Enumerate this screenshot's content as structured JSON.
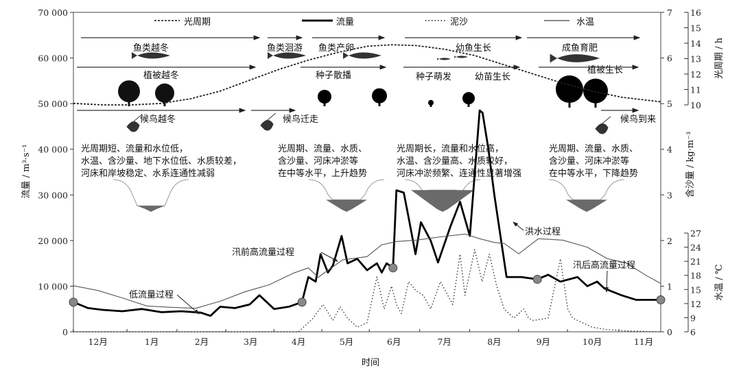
{
  "chart_data": {
    "type": "line",
    "xlabel": "时间",
    "x_ticks": [
      "12月",
      "1月",
      "2月",
      "3月",
      "4月",
      "5月",
      "6月",
      "7月",
      "8月",
      "9月",
      "10月",
      "11月"
    ],
    "x_tick_pos_months": [
      0.5,
      1.6,
      2.62,
      3.62,
      4.6,
      5.58,
      6.55,
      7.58,
      8.6,
      9.6,
      10.6,
      11.65
    ],
    "x_range_months": [
      0,
      12
    ],
    "left_axis": {
      "label": "流量 / m³·s⁻¹",
      "ylim": [
        0,
        70000
      ],
      "ticks": [
        "0",
        "10 000",
        "20 000",
        "30 000",
        "40 000",
        "50 000",
        "60 000",
        "70 000"
      ]
    },
    "sediment_axis": {
      "label": "含沙量 / kg·m⁻³",
      "ylim": [
        0,
        7
      ],
      "ticks": [
        "0",
        "1",
        "2",
        "3",
        "4",
        "5",
        "6",
        "7"
      ]
    },
    "photoperiod_axis": {
      "label": "光周期 / h",
      "ylim": [
        10,
        16
      ],
      "ticks": [
        "10",
        "11",
        "12",
        "13",
        "14",
        "15",
        "16"
      ]
    },
    "temp_axis": {
      "label": "水温 / ℃",
      "ylim": [
        6,
        27
      ],
      "ticks": [
        "6",
        "9",
        "12",
        "15",
        "18",
        "21",
        "24",
        "27"
      ]
    },
    "legend": [
      {
        "name": "光周期",
        "style": "dotted"
      },
      {
        "name": "流量",
        "style": "thick"
      },
      {
        "name": "泥沙",
        "style": "dotted"
      },
      {
        "name": "水温",
        "style": "thin"
      }
    ],
    "series": [
      {
        "name": "流量",
        "axis": "left",
        "t": [
          0,
          0.3,
          0.6,
          1.0,
          1.4,
          1.8,
          2.2,
          2.6,
          2.8,
          3.0,
          3.3,
          3.6,
          3.8,
          4.1,
          4.4,
          4.67,
          4.8,
          4.95,
          5.05,
          5.2,
          5.3,
          5.48,
          5.6,
          5.8,
          6.0,
          6.2,
          6.3,
          6.4,
          6.53,
          6.6,
          6.75,
          6.85,
          6.99,
          7.1,
          7.3,
          7.45,
          7.7,
          7.9,
          8.1,
          8.3,
          8.36,
          8.48,
          8.6,
          8.85,
          9.15,
          9.48,
          9.7,
          9.95,
          10.3,
          10.5,
          10.7,
          10.85,
          11.2,
          11.5,
          12.0
        ],
        "values": [
          6500,
          5200,
          4800,
          4500,
          5000,
          4300,
          4500,
          4200,
          3500,
          5500,
          5200,
          6000,
          8000,
          5000,
          5500,
          6500,
          12000,
          11000,
          17000,
          13000,
          14500,
          21000,
          15000,
          16000,
          13500,
          15000,
          13000,
          15000,
          14000,
          31000,
          30500,
          25000,
          17000,
          24000,
          20000,
          15200,
          23000,
          28500,
          21000,
          48500,
          48000,
          40000,
          30000,
          12000,
          12000,
          11500,
          12500,
          11000,
          12000,
          10000,
          11000,
          9500,
          8000,
          7000,
          7000
        ]
      },
      {
        "name": "水温",
        "axis": "temp",
        "t": [
          0,
          0.5,
          1.0,
          1.5,
          2.0,
          2.5,
          3.0,
          3.5,
          4.0,
          4.5,
          4.8,
          5.0,
          5.5,
          6.0,
          6.3,
          6.6,
          7.0,
          7.5,
          8.0,
          8.3,
          8.6,
          8.8,
          9.1,
          9.5,
          10.0,
          10.5,
          10.9,
          11.3,
          11.7,
          12.0
        ],
        "values": [
          15.8,
          14.8,
          13.2,
          11.5,
          11.2,
          11.0,
          12.5,
          14.5,
          16.0,
          18.5,
          19.6,
          17.6,
          21.3,
          22.0,
          24.5,
          25.2,
          25.5,
          26.2,
          26.8,
          25.8,
          25.0,
          24.8,
          22.6,
          25.8,
          25.5,
          24.0,
          21.6,
          20.6,
          18.0,
          16.3
        ]
      },
      {
        "name": "泥沙",
        "axis": "sediment",
        "t": [
          0,
          4.6,
          4.9,
          5.1,
          5.3,
          5.45,
          5.6,
          5.8,
          6.0,
          6.2,
          6.35,
          6.5,
          6.6,
          6.7,
          6.85,
          7.0,
          7.15,
          7.3,
          7.5,
          7.6,
          7.75,
          7.9,
          8.0,
          8.2,
          8.35,
          8.5,
          8.65,
          8.8,
          9.0,
          9.2,
          9.3,
          9.4,
          9.7,
          9.95,
          10.1,
          10.2,
          10.4,
          10.6,
          10.9,
          11.3,
          12.0
        ],
        "values": [
          0,
          0,
          0.3,
          0.6,
          0.25,
          0.55,
          0.3,
          0.1,
          0.2,
          1.2,
          0.5,
          1.0,
          0.6,
          0.4,
          1.1,
          0.9,
          0.8,
          0.5,
          1.1,
          0.9,
          0.6,
          1.7,
          0.8,
          1.8,
          1.1,
          1.7,
          1.0,
          0.5,
          0.3,
          0.5,
          0.3,
          0.25,
          0.3,
          1.6,
          0.5,
          0.3,
          0.2,
          0.1,
          0.05,
          0.02,
          0
        ]
      },
      {
        "name": "光周期",
        "axis": "photoperiod",
        "t": [
          0,
          0.6,
          1.2,
          1.8,
          2.4,
          3.0,
          3.6,
          4.2,
          4.8,
          5.4,
          6.0,
          6.5,
          7.0,
          7.6,
          8.2,
          8.8,
          9.4,
          10.0,
          10.6,
          11.2,
          12.0
        ],
        "values": [
          10.1,
          10.0,
          10.0,
          10.1,
          10.4,
          10.9,
          11.6,
          12.3,
          12.9,
          13.4,
          13.8,
          13.9,
          13.85,
          13.6,
          13.2,
          12.6,
          12.0,
          11.4,
          10.9,
          10.5,
          10.2
        ]
      }
    ],
    "key_points": [
      {
        "t": 0,
        "value": 6500
      },
      {
        "t": 4.67,
        "value": 6500
      },
      {
        "t": 6.53,
        "value": 14000
      },
      {
        "t": 9.48,
        "value": 11500
      },
      {
        "t": 12.0,
        "value": 7000
      }
    ],
    "annotations": [
      "洪水过程",
      "汛前高流量过程",
      "低流量过程",
      "汛后高流量过程"
    ]
  },
  "phenology": {
    "fish": [
      "鱼类越冬",
      "鱼类洄游",
      "鱼类产卵",
      "幼鱼生长",
      "成鱼育肥"
    ],
    "plants": [
      "植被越冬",
      "种子散播",
      "种子萌发",
      "幼苗生长",
      "植被生长"
    ],
    "birds": [
      "候鸟越冬",
      "候鸟迁走",
      "候鸟到来"
    ]
  },
  "descriptions": [
    [
      "光周期短、流量和水位低，",
      "水温、含沙量、地下水位低、水质较差，",
      "河床和岸坡稳定、水系连通性减弱"
    ],
    [
      "光周期、流量、水质、",
      "含沙量、河床冲淤等",
      "在中等水平，上升趋势"
    ],
    [
      "光周期长，流量和水位高，",
      "水温、含沙量高、水质较好，",
      "河床冲淤频繁、连通性显著增强"
    ],
    [
      "光周期、流量、水质、",
      "含沙量、河床冲淤等",
      "在中等水平，下降趋势"
    ]
  ]
}
